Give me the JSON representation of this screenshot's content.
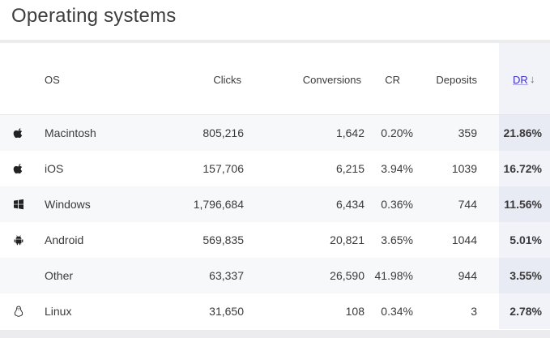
{
  "panel": {
    "title": "Operating systems"
  },
  "columns": {
    "os": "OS",
    "clicks": "Clicks",
    "conversions": "Conversions",
    "cr": "CR",
    "deposits": "Deposits",
    "dr": "DR",
    "dr_sort": "↓"
  },
  "rows": [
    {
      "icon": "apple-icon",
      "os": "Macintosh",
      "clicks": "805,216",
      "conversions": "1,642",
      "cr": "0.20%",
      "deposits": "359",
      "dr": "21.86%"
    },
    {
      "icon": "apple-icon",
      "os": "iOS",
      "clicks": "157,706",
      "conversions": "6,215",
      "cr": "3.94%",
      "deposits": "1039",
      "dr": "16.72%"
    },
    {
      "icon": "windows-icon",
      "os": "Windows",
      "clicks": "1,796,684",
      "conversions": "6,434",
      "cr": "0.36%",
      "deposits": "744",
      "dr": "11.56%"
    },
    {
      "icon": "android-icon",
      "os": "Android",
      "clicks": "569,835",
      "conversions": "20,821",
      "cr": "3.65%",
      "deposits": "1044",
      "dr": "5.01%"
    },
    {
      "icon": "",
      "os": "Other",
      "clicks": "63,337",
      "conversions": "26,590",
      "cr": "41.98%",
      "deposits": "944",
      "dr": "3.55%"
    },
    {
      "icon": "linux-icon",
      "os": "Linux",
      "clicks": "31,650",
      "conversions": "108",
      "cr": "0.34%",
      "deposits": "3",
      "dr": "2.78%"
    }
  ]
}
